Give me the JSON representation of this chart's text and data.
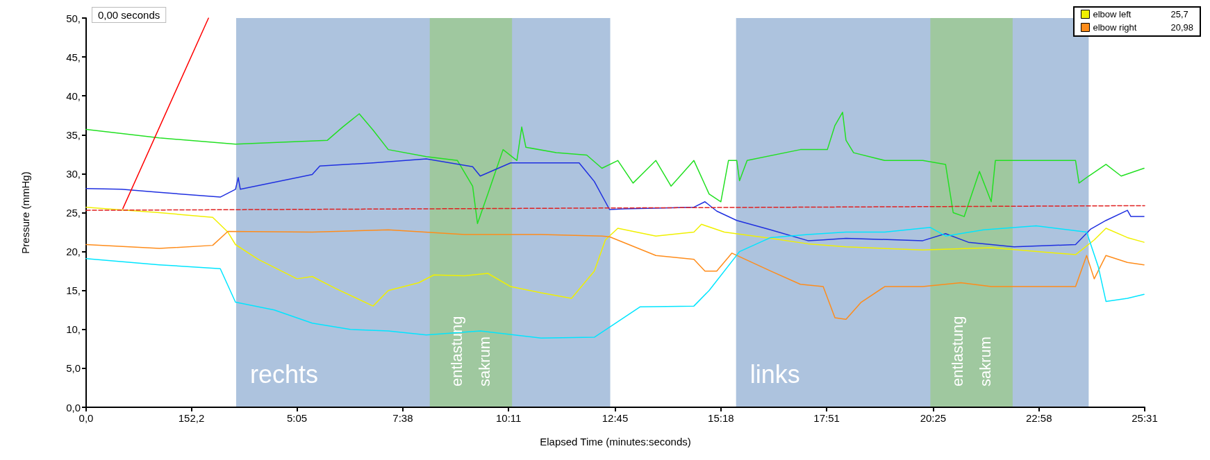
{
  "chart_data": {
    "type": "line",
    "xlabel": "Elapsed Time (minutes:seconds)",
    "ylabel": "Pressure (mmHg)",
    "xlim": [
      0,
      1531
    ],
    "xticks": [
      {
        "value": 0,
        "label": "0,0"
      },
      {
        "value": 152.2,
        "label": "152,2"
      },
      {
        "value": 305,
        "label": "5:05"
      },
      {
        "value": 458,
        "label": "7:38"
      },
      {
        "value": 611,
        "label": "10:11"
      },
      {
        "value": 765,
        "label": "12:45"
      },
      {
        "value": 918,
        "label": "15:18"
      },
      {
        "value": 1071,
        "label": "17:51"
      },
      {
        "value": 1225,
        "label": "20:25"
      },
      {
        "value": 1378,
        "label": "22:58"
      },
      {
        "value": 1531,
        "label": "25:31"
      }
    ],
    "ylim": [
      0,
      50
    ],
    "yticks": [
      {
        "value": 0,
        "label": "0,0"
      },
      {
        "value": 5,
        "label": "5,0"
      },
      {
        "value": 10,
        "label": "10,"
      },
      {
        "value": 15,
        "label": "15,"
      },
      {
        "value": 20,
        "label": "20,"
      },
      {
        "value": 25,
        "label": "25,"
      },
      {
        "value": 30,
        "label": "30,"
      },
      {
        "value": 35,
        "label": "35,"
      },
      {
        "value": 40,
        "label": "40,"
      },
      {
        "value": 45,
        "label": "45,"
      },
      {
        "value": 50,
        "label": "50,"
      }
    ],
    "grid": false,
    "legend": "top right",
    "marker": "none",
    "line_style": "solid",
    "annotations": [
      "0,00 seconds",
      "25,7",
      "20,98"
    ],
    "bands": [
      {
        "axis": "x",
        "from": 217,
        "to": 758,
        "label": "rechts",
        "color": "#adc3de"
      },
      {
        "axis": "x",
        "from": 497,
        "to": 616,
        "label": "entlastung sakrum",
        "color": "#9fc89f"
      },
      {
        "axis": "x",
        "from": 940,
        "to": 1450,
        "label": "links",
        "color": "#adc3de"
      },
      {
        "axis": "x",
        "from": 1221,
        "to": 1340,
        "label": "entlastung sakrum",
        "color": "#9fc89f"
      }
    ],
    "series": [
      {
        "color": "#22e022",
        "x": [
          0,
          106,
          216,
          349,
          371,
          395,
          415,
          437,
          492,
          537,
          559,
          566,
          581,
          603,
          623,
          630,
          636,
          680,
          724,
          746,
          769,
          791,
          824,
          846,
          879,
          901,
          918,
          929,
          941,
          945,
          956,
          1033,
          1072,
          1083,
          1094,
          1099,
          1110,
          1155,
          1210,
          1243,
          1254,
          1270,
          1292,
          1309,
          1315,
          1431,
          1436,
          1450,
          1475,
          1497,
          1530
        ],
        "values": [
          35.7,
          34.6,
          33.8,
          34.3,
          36.0,
          37.7,
          35.6,
          33.1,
          32.2,
          31.7,
          28.4,
          23.6,
          27.4,
          33.1,
          31.7,
          36.0,
          33.4,
          32.7,
          32.4,
          30.7,
          31.7,
          28.8,
          31.7,
          28.4,
          31.7,
          27.4,
          26.4,
          31.7,
          31.7,
          29.1,
          31.7,
          33.1,
          33.1,
          36.2,
          37.9,
          34.3,
          32.7,
          31.7,
          31.7,
          31.2,
          25.0,
          24.5,
          30.3,
          26.4,
          31.7,
          31.7,
          28.8,
          29.7,
          31.2,
          29.7,
          30.7
        ]
      },
      {
        "color": "#1f2fe0",
        "x": [
          0,
          51,
          106,
          194,
          216,
          220,
          223,
          327,
          338,
          415,
          492,
          559,
          570,
          614,
          713,
          735,
          757,
          779,
          879,
          895,
          912,
          941,
          990,
          1044,
          1066,
          1099,
          1210,
          1243,
          1276,
          1342,
          1431,
          1453,
          1475,
          1506,
          1511,
          1530
        ],
        "values": [
          28.1,
          28.0,
          27.6,
          27.0,
          28.0,
          29.5,
          28.0,
          29.9,
          31.0,
          31.4,
          31.9,
          30.9,
          29.7,
          31.4,
          31.4,
          29.0,
          25.4,
          25.5,
          25.7,
          26.4,
          25.2,
          24.0,
          22.8,
          21.4,
          21.5,
          21.7,
          21.4,
          22.3,
          21.2,
          20.6,
          20.9,
          22.9,
          24.0,
          25.3,
          24.5,
          24.5
        ]
      },
      {
        "name": "elbow left",
        "color": "#f0f000",
        "x": [
          0,
          106,
          183,
          205,
          216,
          249,
          305,
          327,
          360,
          415,
          437,
          481,
          503,
          547,
          581,
          614,
          658,
          702,
          735,
          751,
          769,
          824,
          879,
          890,
          923,
          990,
          1044,
          1099,
          1210,
          1309,
          1431,
          1458,
          1475,
          1506,
          1530
        ],
        "values": [
          25.7,
          25.0,
          24.4,
          22.5,
          20.9,
          19.0,
          16.5,
          16.8,
          15.3,
          13.0,
          15.0,
          16.0,
          17.0,
          16.9,
          17.2,
          15.5,
          14.7,
          14.0,
          17.5,
          21.5,
          23.0,
          22.0,
          22.5,
          23.5,
          22.5,
          21.7,
          21.0,
          20.6,
          20.2,
          20.5,
          19.6,
          21.5,
          23.0,
          21.8,
          21.2
        ]
      },
      {
        "name": "elbow right",
        "color": "#ff8c1a",
        "x": [
          0,
          106,
          183,
          205,
          327,
          437,
          547,
          658,
          746,
          757,
          824,
          879,
          895,
          912,
          934,
          990,
          1033,
          1066,
          1083,
          1099,
          1121,
          1155,
          1210,
          1265,
          1309,
          1431,
          1447,
          1458,
          1475,
          1506,
          1530
        ],
        "values": [
          20.9,
          20.4,
          20.8,
          22.6,
          22.5,
          22.8,
          22.2,
          22.2,
          22.0,
          21.9,
          19.5,
          19.0,
          17.5,
          17.5,
          19.8,
          17.5,
          15.8,
          15.5,
          11.5,
          11.3,
          13.5,
          15.5,
          15.5,
          16.0,
          15.5,
          15.5,
          19.5,
          16.5,
          19.5,
          18.6,
          18.3
        ]
      },
      {
        "color": "#00e5ff",
        "x": [
          0,
          106,
          194,
          216,
          272,
          327,
          382,
          437,
          492,
          570,
          658,
          735,
          769,
          801,
          879,
          901,
          945,
          990,
          1044,
          1099,
          1155,
          1221,
          1243,
          1298,
          1374,
          1447,
          1464,
          1475,
          1506,
          1530
        ],
        "values": [
          19.1,
          18.3,
          17.8,
          13.5,
          12.5,
          10.8,
          10.0,
          9.8,
          9.3,
          9.8,
          8.9,
          9.0,
          11.0,
          12.9,
          13.0,
          15.0,
          20.0,
          21.8,
          22.2,
          22.5,
          22.5,
          23.1,
          22.0,
          22.8,
          23.3,
          22.5,
          18.0,
          13.6,
          14.0,
          14.5
        ]
      },
      {
        "color": "#e02020",
        "line_style": "dashed",
        "x": [
          0,
          1531
        ],
        "values": [
          25.3,
          25.9
        ]
      },
      {
        "color": "#ff0000",
        "x": [
          53,
          177
        ],
        "values": [
          25.5,
          50
        ]
      }
    ]
  }
}
